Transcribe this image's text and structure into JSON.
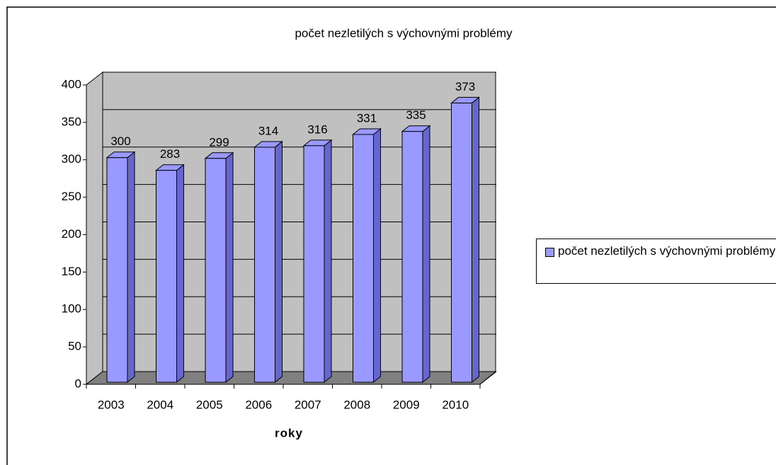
{
  "chart_data": {
    "type": "bar",
    "title": "počet nezletilých s výchovnými problémy",
    "x_label": "roky",
    "categories": [
      "2003",
      "2004",
      "2005",
      "2006",
      "2007",
      "2008",
      "2009",
      "2010"
    ],
    "series": [
      {
        "name": "počet nezletilých s výchovnými problémy",
        "color": "#9999ff",
        "values": [
          300,
          283,
          299,
          314,
          316,
          331,
          335,
          373
        ]
      }
    ],
    "ylim": [
      0,
      400
    ],
    "yticks": [
      0,
      50,
      100,
      150,
      200,
      250,
      300,
      350,
      400
    ],
    "grid": true,
    "legend": "right"
  }
}
